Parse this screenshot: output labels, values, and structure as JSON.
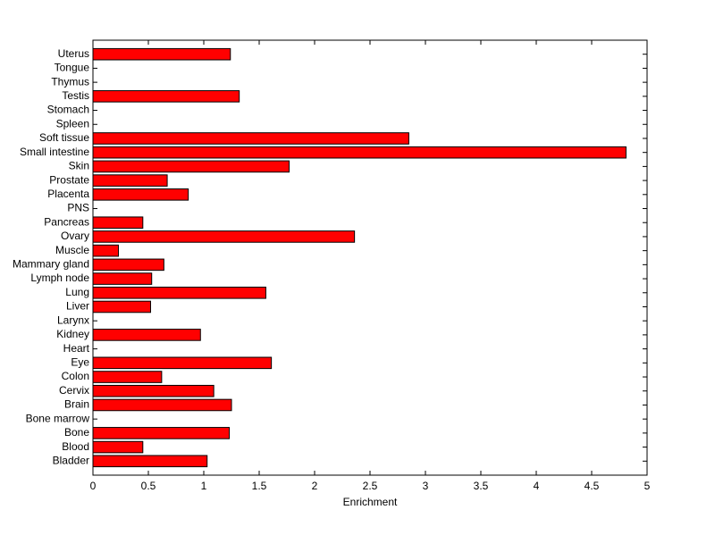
{
  "chart_data": {
    "type": "barh",
    "x_label": "Enrichment",
    "categories": [
      "Bladder",
      "Blood",
      "Bone",
      "Bone marrow",
      "Brain",
      "Cervix",
      "Colon",
      "Eye",
      "Heart",
      "Kidney",
      "Larynx",
      "Liver",
      "Lung",
      "Lymph node",
      "Mammary gland",
      "Muscle",
      "Ovary",
      "Pancreas",
      "PNS",
      "Placenta",
      "Prostate",
      "Skin",
      "Small intestine",
      "Soft tissue",
      "Spleen",
      "Stomach",
      "Testis",
      "Thymus",
      "Tongue",
      "Uterus"
    ],
    "values": [
      1.03,
      0.45,
      1.23,
      0,
      1.25,
      1.09,
      0.62,
      1.61,
      0,
      0.97,
      0,
      0.52,
      1.56,
      0.53,
      0.64,
      0.23,
      2.36,
      0.45,
      0,
      0.86,
      0.67,
      1.77,
      4.81,
      2.85,
      0,
      0,
      1.32,
      0,
      0,
      1.24
    ],
    "color": "#ff0000",
    "xlim": [
      0,
      5
    ],
    "xticks": [
      0,
      0.5,
      1,
      1.5,
      2,
      2.5,
      3,
      3.5,
      4,
      4.5,
      5
    ]
  }
}
